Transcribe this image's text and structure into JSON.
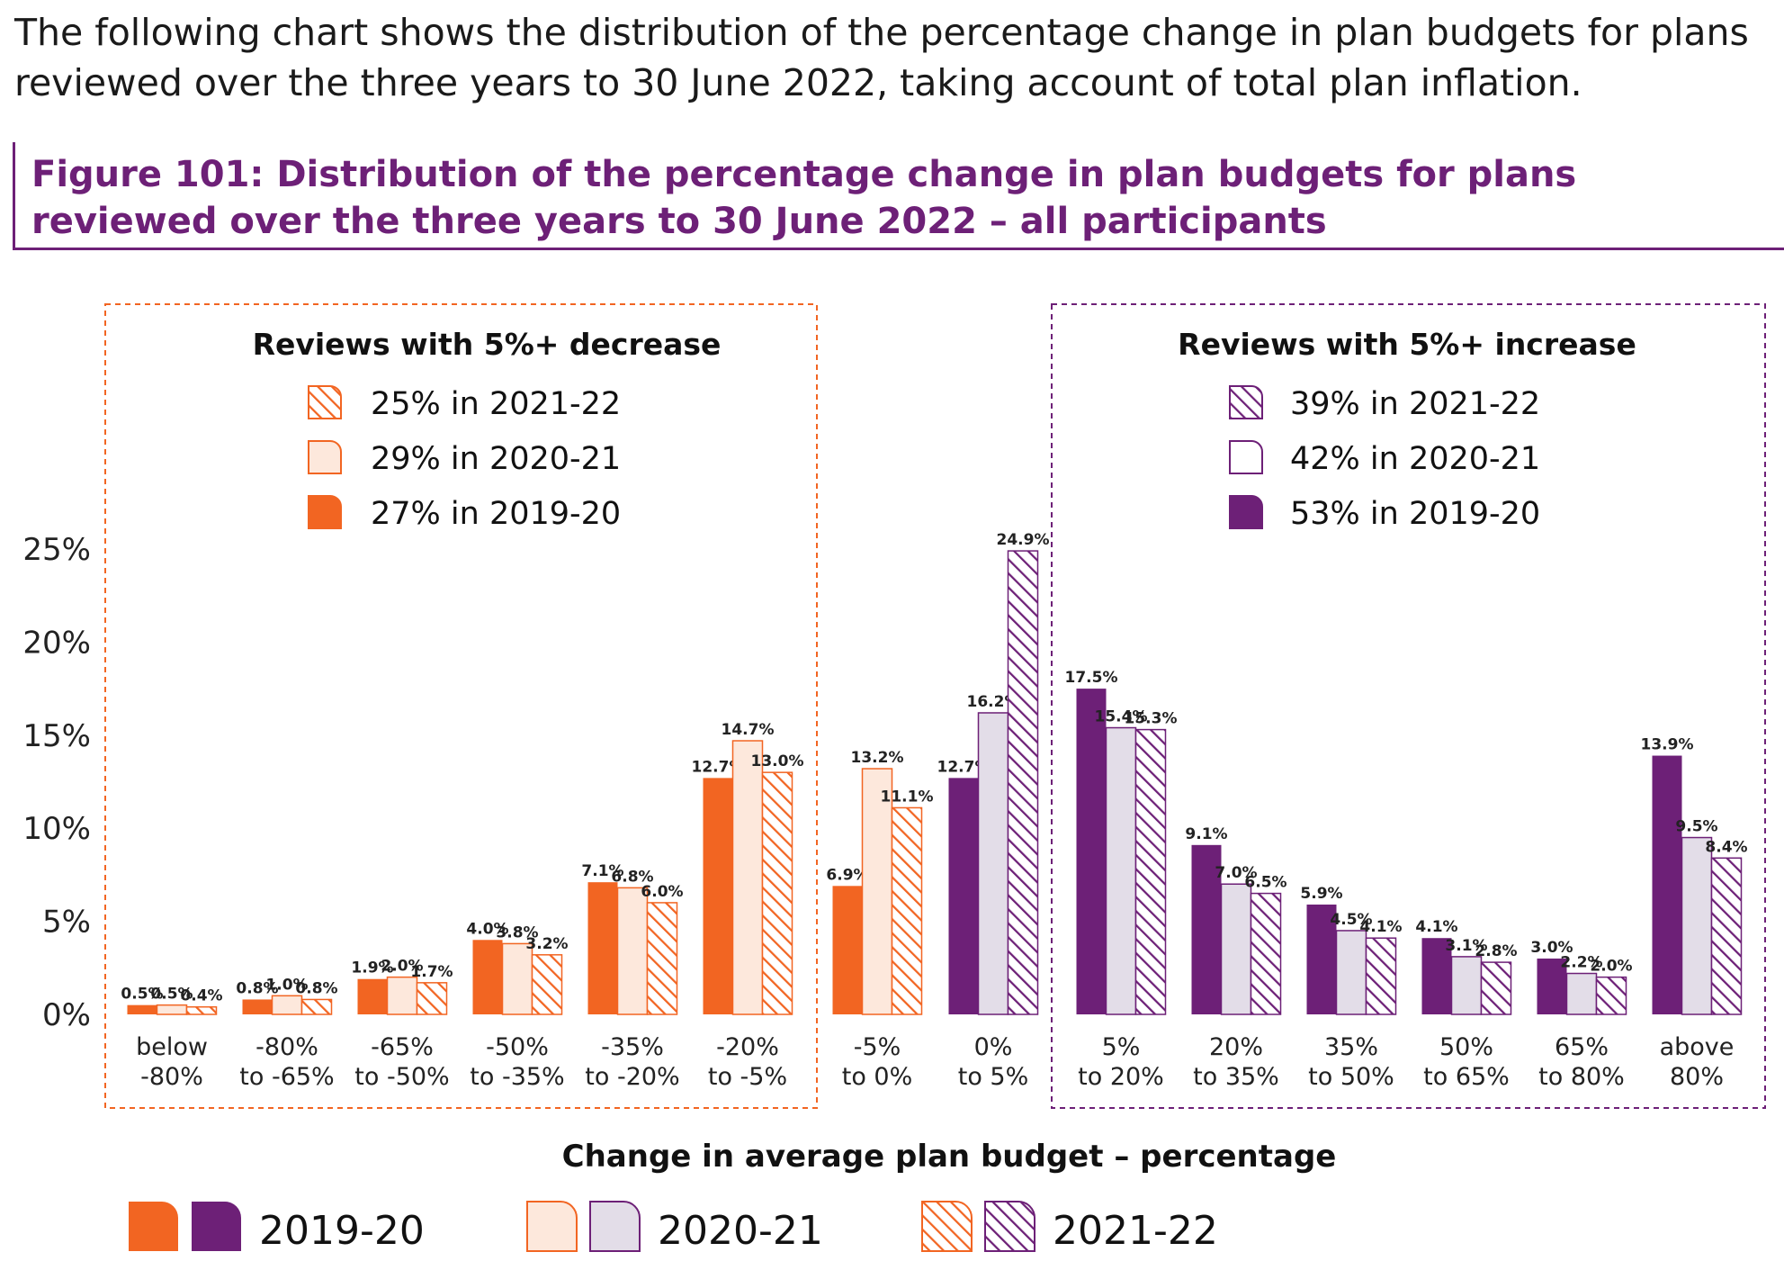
{
  "intro_text": "The following chart shows the distribution of the percentage change in plan budgets for plans reviewed over the three years to 30 June 2022, taking account of total plan inflation.",
  "figure_title": "Figure 101: Distribution of the percentage change in plan budgets for plans reviewed over the three years to 30 June 2022 – all participants",
  "colors": {
    "orange": "#f26522",
    "orange_light": "#fde8dc",
    "purple": "#6d2077",
    "purple_light": "#e3dde8"
  },
  "panels": {
    "decrease": {
      "title": "Reviews with 5%+ decrease",
      "lines": [
        "25% in 2021-22",
        "29% in 2020-21",
        "27% in 2019-20"
      ]
    },
    "increase": {
      "title": "Reviews with 5%+ increase",
      "lines": [
        "39% in 2021-22",
        "42% in 2020-21",
        "53% in 2019-20"
      ]
    }
  },
  "legend": [
    "2019-20",
    "2020-21",
    "2021-22"
  ],
  "chart_data": {
    "type": "bar",
    "xlabel": "Change in average plan budget – percentage",
    "ylabel": "",
    "ylim": [
      0,
      25
    ],
    "yticks": [
      "0%",
      "5%",
      "10%",
      "15%",
      "20%",
      "25%"
    ],
    "grid": false,
    "legend_position": "bottom",
    "categories": [
      [
        "below",
        "-80%"
      ],
      [
        "-80%",
        "to -65%"
      ],
      [
        "-65%",
        "to -50%"
      ],
      [
        "-50%",
        "to -35%"
      ],
      [
        "-35%",
        "to -20%"
      ],
      [
        "-20%",
        "to -5%"
      ],
      [
        "-5%",
        "to 0%"
      ],
      [
        "0%",
        "to 5%"
      ],
      [
        "5%",
        "to 20%"
      ],
      [
        "20%",
        "to 35%"
      ],
      [
        "35%",
        "to 50%"
      ],
      [
        "50%",
        "to 65%"
      ],
      [
        "65%",
        "to 80%"
      ],
      [
        "above",
        "80%"
      ]
    ],
    "category_colors": [
      "orange",
      "orange",
      "orange",
      "orange",
      "orange",
      "orange",
      "orange",
      "purple",
      "purple",
      "purple",
      "purple",
      "purple",
      "purple",
      "purple"
    ],
    "series": [
      {
        "name": "2019-20",
        "style": "solid",
        "values": [
          0.5,
          0.8,
          1.9,
          4.0,
          7.1,
          12.7,
          6.9,
          12.7,
          17.5,
          9.1,
          5.9,
          4.1,
          3.0,
          13.9
        ]
      },
      {
        "name": "2020-21",
        "style": "light",
        "values": [
          0.5,
          1.0,
          2.0,
          3.8,
          6.8,
          14.7,
          13.2,
          16.2,
          15.4,
          7.0,
          4.5,
          3.1,
          2.2,
          9.5
        ]
      },
      {
        "name": "2021-22",
        "style": "hatched",
        "values": [
          0.4,
          0.8,
          1.7,
          3.2,
          6.0,
          13.0,
          11.1,
          24.9,
          15.3,
          6.5,
          4.1,
          2.8,
          2.0,
          8.4
        ]
      }
    ],
    "data_labels": [
      [
        "0.5%",
        "0.8%",
        "1.9%",
        "4.0%",
        "7.1%",
        "12.7%",
        "6.9%",
        "12.7%",
        "17.5%",
        "9.1%",
        "5.9%",
        "4.1%",
        "3.0%",
        "13.9%"
      ],
      [
        "0.5%",
        "1.0%",
        "2.0%",
        "3.8%",
        "6.8%",
        "14.7%",
        "13.2%",
        "16.2%",
        "15.4%",
        "7.0%",
        "4.5%",
        "3.1%",
        "2.2%",
        "9.5%"
      ],
      [
        "0.4%",
        "0.8%",
        "1.7%",
        "3.2%",
        "6.0%",
        "13.0%",
        "11.1%",
        "24.9%",
        "15.3%",
        "6.5%",
        "4.1%",
        "2.8%",
        "2.0%",
        "8.4%"
      ]
    ]
  }
}
